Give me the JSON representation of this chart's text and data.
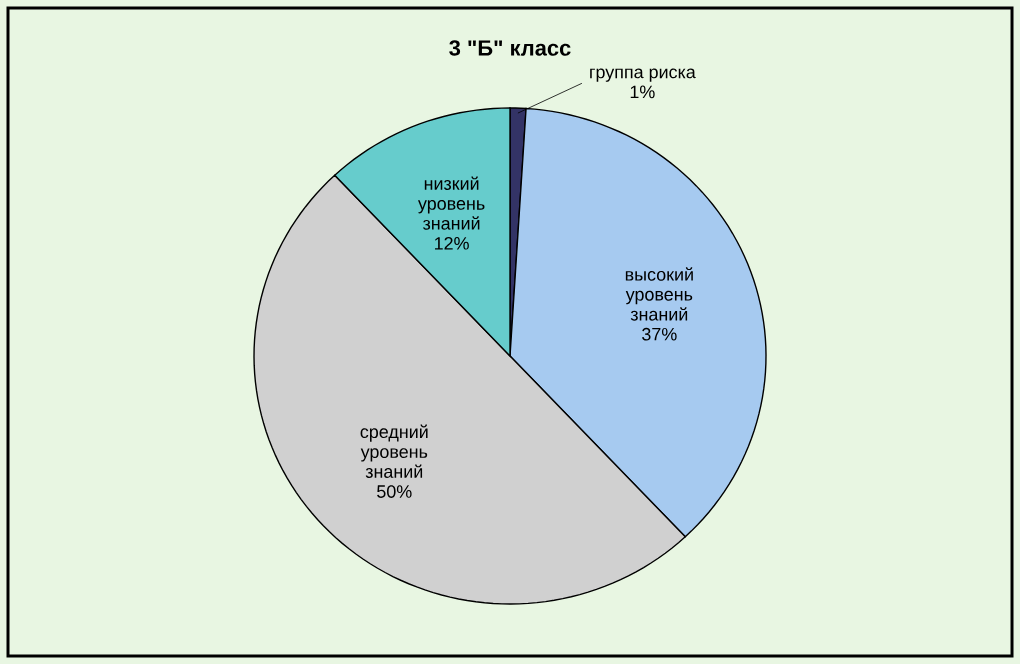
{
  "chart_data": {
    "type": "pie",
    "title": "3 \"Б\" класс",
    "categories": [
      "группа риска",
      "высокий уровень знаний",
      "средний уровень знаний",
      "низкий уровень знаний"
    ],
    "values": [
      1,
      37,
      50,
      12
    ],
    "value_labels": [
      "1%",
      "37%",
      "50%",
      "12%"
    ],
    "colors": [
      "#333366",
      "#a6caf0",
      "#d0d0d0",
      "#66cccc"
    ]
  }
}
